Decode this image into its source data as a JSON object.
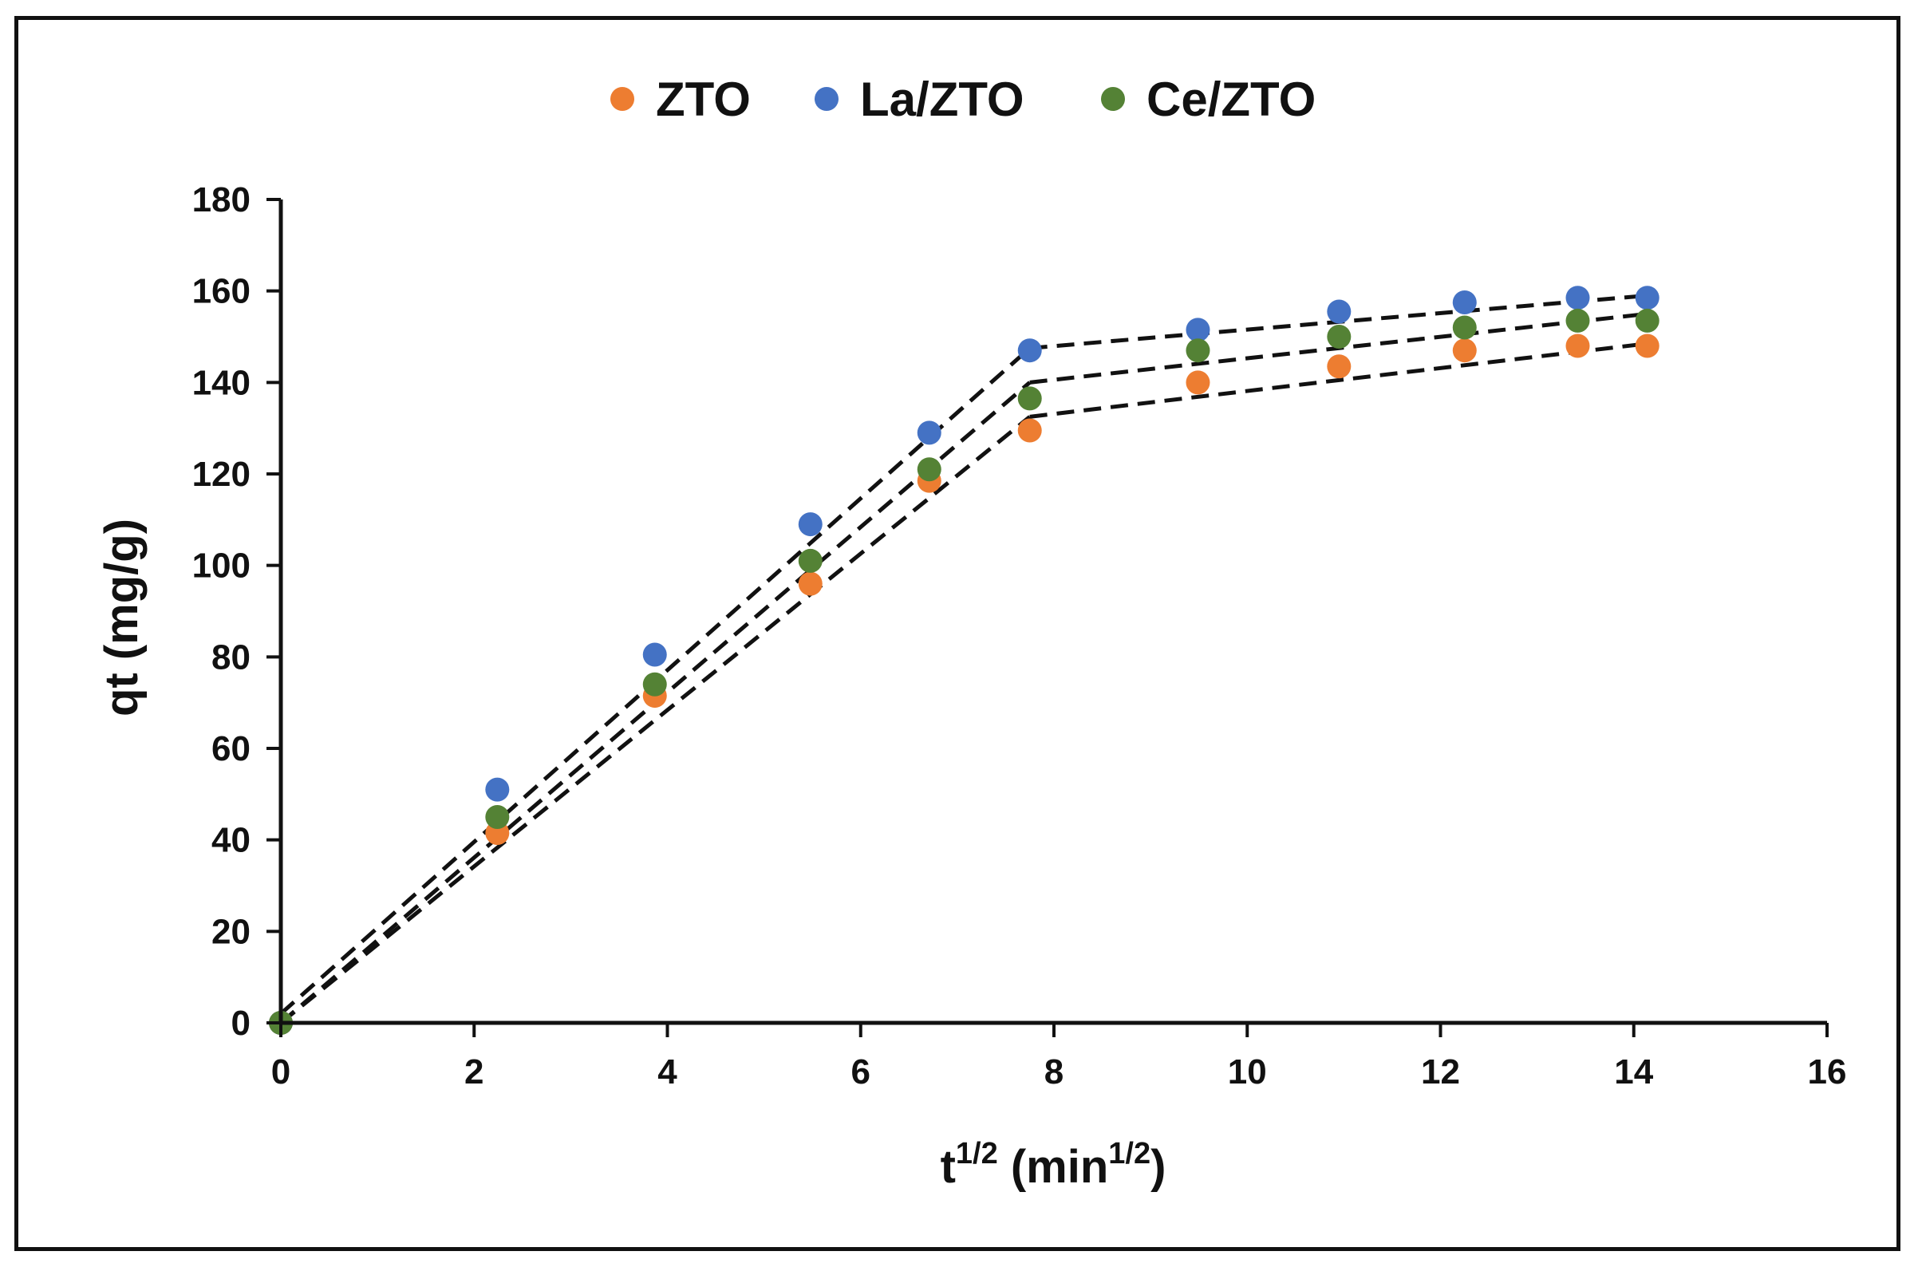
{
  "chart_data": {
    "type": "scatter",
    "title": "",
    "xlabel": {
      "base": "t",
      "base_sup": "1/2",
      "unit": "min",
      "unit_sup": "1/2"
    },
    "ylabel": "qt (mg/g)",
    "xlim": [
      0,
      16
    ],
    "ylim": [
      0,
      180
    ],
    "xticks": [
      0,
      2,
      4,
      6,
      8,
      10,
      12,
      14,
      16
    ],
    "yticks": [
      0,
      20,
      40,
      60,
      80,
      100,
      120,
      140,
      160,
      180
    ],
    "legend_position": "top-center",
    "grid": false,
    "x": [
      0,
      2.24,
      3.87,
      5.48,
      6.71,
      7.75,
      9.49,
      10.95,
      12.25,
      13.42,
      14.14
    ],
    "series": [
      {
        "name": "ZTO",
        "color": "#ED7D31",
        "values": [
          0,
          41.5,
          71.5,
          96,
          118.5,
          129.5,
          140,
          143.5,
          147,
          148,
          148
        ],
        "fit_segments": [
          {
            "x": [
              0,
              7.75
            ],
            "y": [
              0,
              132.5
            ]
          },
          {
            "x": [
              7.75,
              14.14
            ],
            "y": [
              132.5,
              148.5
            ]
          }
        ]
      },
      {
        "name": "La/ZTO",
        "color": "#4472C4",
        "values": [
          0,
          51,
          80.5,
          109,
          129,
          147,
          151.5,
          155.5,
          157.5,
          158.5,
          158.5
        ],
        "fit_segments": [
          {
            "x": [
              0,
              7.75
            ],
            "y": [
              2,
              147.5
            ]
          },
          {
            "x": [
              7.75,
              14.14
            ],
            "y": [
              147.5,
              159
            ]
          }
        ]
      },
      {
        "name": "Ce/ZTO",
        "color": "#548235",
        "values": [
          0,
          45,
          74,
          101,
          121,
          136.5,
          147,
          150,
          152,
          153.5,
          153.5
        ],
        "fit_segments": [
          {
            "x": [
              0,
              7.75
            ],
            "y": [
              0,
              140
            ]
          },
          {
            "x": [
              7.75,
              14.14
            ],
            "y": [
              140,
              155
            ]
          }
        ]
      }
    ]
  }
}
